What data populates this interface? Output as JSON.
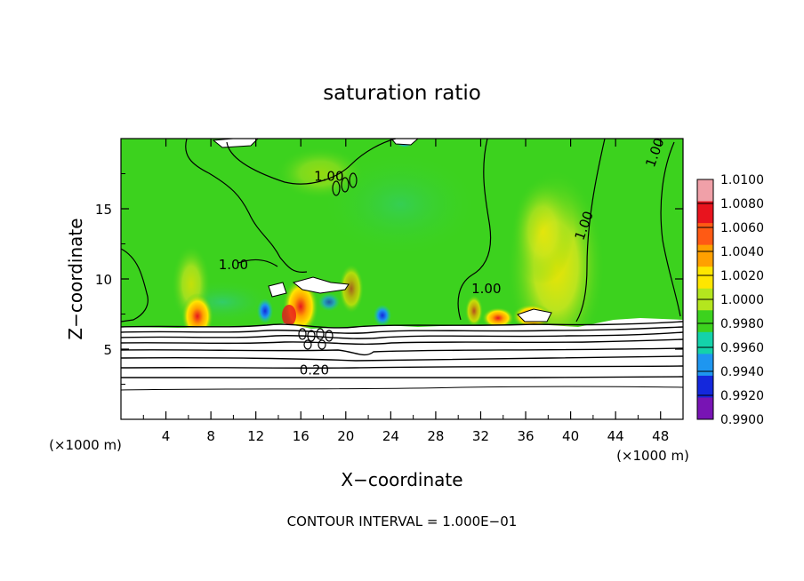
{
  "chart_data": {
    "type": "heatmap",
    "title": "saturation ratio",
    "xlabel": "X−coordinate",
    "ylabel": "Z−coordinate",
    "x_unit_left": "(×1000 m)",
    "x_unit_right": "(×1000 m)",
    "xlim": [
      0,
      50
    ],
    "ylim": [
      0,
      20
    ],
    "x_ticks": [
      4,
      8,
      12,
      16,
      20,
      24,
      28,
      32,
      36,
      40,
      44,
      48
    ],
    "y_ticks": [
      5,
      10,
      15
    ],
    "footer": "CONTOUR INTERVAL = 1.000E−01",
    "contour_labels": [
      {
        "text": "1.00",
        "x": 18.5,
        "z": 17.3
      },
      {
        "text": "1.00",
        "x": 10.0,
        "z": 11.0
      },
      {
        "text": "1.00",
        "x": 32.5,
        "z": 9.3
      },
      {
        "text": "1.00",
        "x": 41.2,
        "z": 13.8
      },
      {
        "text": "1.00",
        "x": 47.5,
        "z": 19.0
      },
      {
        "text": "0.20",
        "x": 17.2,
        "z": 3.5
      }
    ],
    "colorbar": {
      "labels": [
        "1.0100",
        "1.0080",
        "1.0060",
        "1.0040",
        "1.0020",
        "1.0000",
        "0.9980",
        "0.9960",
        "0.9940",
        "0.9920",
        "0.9900"
      ],
      "colors": [
        "#f0a0a8",
        "#e8141e",
        "#ff5a14",
        "#ffa000",
        "#ffe600",
        "#b4e61e",
        "#3cd21e",
        "#14d2aa",
        "#1e96f0",
        "#1428dc",
        "#7814b4"
      ]
    },
    "field_description_colors": {
      "background_near_1": "#3cd21e",
      "subsaturated_below_cloud": "#ffffff"
    }
  }
}
